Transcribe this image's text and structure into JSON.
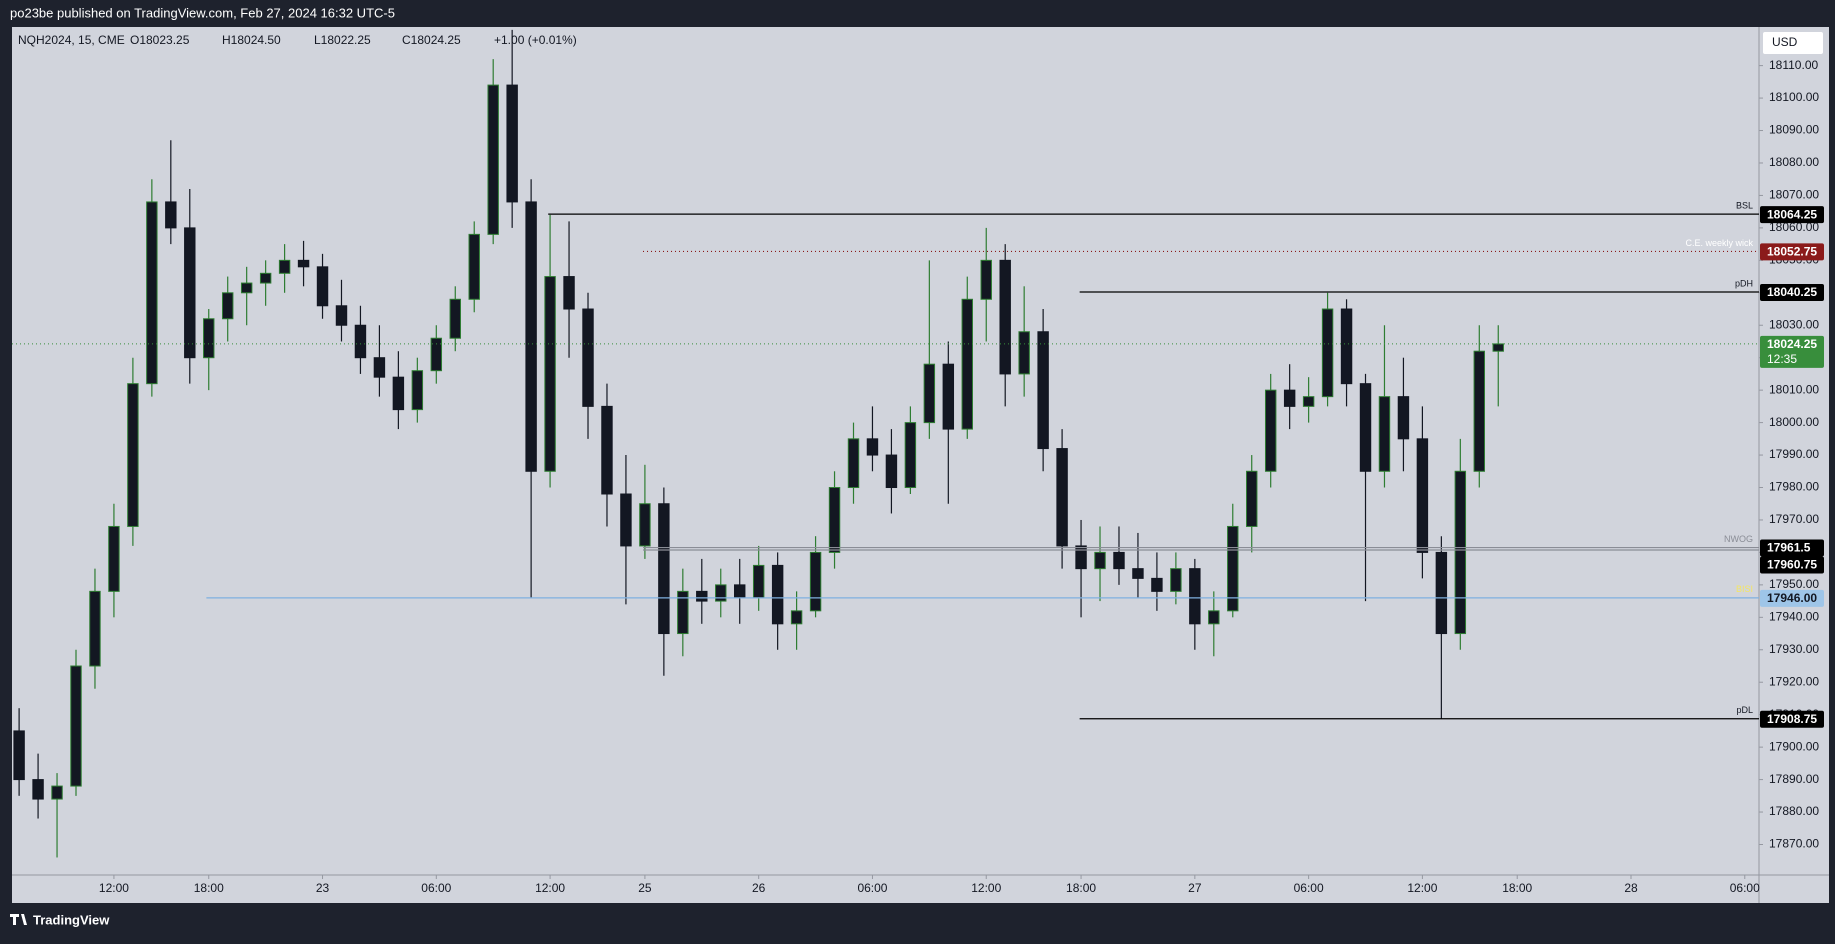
{
  "header": {
    "publisher": "po23be published on TradingView.com, Feb 27, 2024 16:32 UTC-5",
    "brand": "TradingView",
    "currency": "USD"
  },
  "chart_data": {
    "type": "candlestick",
    "legend": {
      "symbol": "NQH2024, 15, CME",
      "open": "O18023.25",
      "high": "H18024.50",
      "low": "L18022.25",
      "close": "C18024.25",
      "change": "+1.00 (+0.01%)"
    },
    "up_color": "#2e7d32",
    "down_color": "#131722",
    "x": [
      0,
      4,
      8,
      12,
      16,
      20,
      24,
      28,
      32,
      36,
      40,
      44,
      48,
      52,
      56,
      60,
      64,
      68,
      72,
      76,
      80,
      84,
      88,
      92,
      96,
      100,
      104,
      108,
      112,
      116,
      120,
      124,
      128,
      132,
      136,
      140,
      144,
      148,
      152,
      156,
      160,
      164,
      168,
      172,
      176,
      180,
      184,
      188,
      192,
      196,
      200,
      204,
      208,
      212,
      216,
      220,
      224,
      228,
      232,
      236,
      240,
      244,
      248,
      252,
      256,
      260,
      264,
      268,
      272,
      276,
      280,
      284,
      288,
      292,
      296,
      300,
      304,
      308,
      312
    ],
    "open": [
      17905,
      17890,
      17884,
      17888,
      17925,
      17948,
      17968,
      18012,
      18068,
      18060,
      18020,
      18032,
      18040,
      18043,
      18046,
      18050,
      18048,
      18036,
      18030,
      18020,
      18014,
      18004,
      18016,
      18026,
      18038,
      18058,
      18104,
      18068,
      17985,
      18045,
      18035,
      18005,
      17978,
      17962,
      17975,
      17935,
      17948,
      17945,
      17950,
      17946,
      17956,
      17938,
      17942,
      17960,
      17980,
      17995,
      17990,
      17980,
      18000,
      18018,
      17998,
      18038,
      18050,
      18015,
      18028,
      17992,
      17962,
      17955,
      17960,
      17955,
      17952,
      17948,
      17955,
      17938,
      17942,
      17968,
      17985,
      18010,
      18005,
      18008,
      18035,
      18012,
      17985,
      18008,
      17995,
      17960,
      17935,
      17985,
      18022
    ],
    "high": [
      17912,
      17898,
      17892,
      17930,
      17955,
      17975,
      18020,
      18075,
      18087,
      18072,
      18035,
      18045,
      18048,
      18050,
      18055,
      18056,
      18052,
      18044,
      18036,
      18030,
      18022,
      18020,
      18030,
      18042,
      18062,
      18112,
      18121,
      18075,
      18064,
      18062,
      18040,
      18012,
      17990,
      17987,
      17980,
      17955,
      17958,
      17955,
      17958,
      17962,
      17960,
      17948,
      17965,
      17985,
      18000,
      18005,
      17998,
      18005,
      18050,
      18025,
      18045,
      18060,
      18055,
      18042,
      18035,
      17998,
      17970,
      17968,
      17968,
      17966,
      17960,
      17960,
      17958,
      17948,
      17975,
      17990,
      18015,
      18018,
      18014,
      18040,
      18038,
      18015,
      18030,
      18020,
      18005,
      17965,
      17995,
      18030,
      18030
    ],
    "low": [
      17885,
      17878,
      17866,
      17885,
      17918,
      17940,
      17962,
      18008,
      18055,
      18012,
      18010,
      18025,
      18030,
      18036,
      18040,
      18042,
      18032,
      18025,
      18015,
      18008,
      17998,
      18000,
      18012,
      18022,
      18034,
      18055,
      18060,
      17946,
      17980,
      18020,
      17995,
      17968,
      17944,
      17958,
      17922,
      17928,
      17938,
      17940,
      17938,
      17942,
      17930,
      17930,
      17940,
      17955,
      17975,
      17985,
      17972,
      17978,
      17995,
      17975,
      17995,
      18025,
      18005,
      18008,
      17985,
      17955,
      17940,
      17945,
      17950,
      17946,
      17942,
      17944,
      17930,
      17928,
      17940,
      17960,
      17980,
      17998,
      18000,
      18005,
      18005,
      17945,
      17980,
      17985,
      17952,
      17908.75,
      17930,
      17980,
      18005
    ],
    "close": [
      17890,
      17884,
      17888,
      17925,
      17948,
      17968,
      18012,
      18068,
      18060,
      18020,
      18032,
      18040,
      18043,
      18046,
      18050,
      18048,
      18036,
      18030,
      18020,
      18014,
      18004,
      18016,
      18026,
      18038,
      18058,
      18104,
      18068,
      17985,
      18045,
      18035,
      18005,
      17978,
      17962,
      17975,
      17935,
      17948,
      17945,
      17950,
      17946,
      17956,
      17938,
      17942,
      17960,
      17980,
      17995,
      17990,
      17980,
      18000,
      18018,
      17998,
      18038,
      18050,
      18015,
      18028,
      17992,
      17962,
      17955,
      17960,
      17955,
      17952,
      17948,
      17955,
      17938,
      17942,
      17968,
      17985,
      18010,
      18005,
      18008,
      18035,
      18012,
      17985,
      18008,
      17995,
      17960,
      17935,
      17985,
      18022,
      18024.25
    ],
    "xlim": [
      -1.5,
      367
    ],
    "xticks": [
      {
        "value": 20,
        "label": "12:00"
      },
      {
        "value": 40,
        "label": "18:00"
      },
      {
        "value": 64,
        "label": "23"
      },
      {
        "value": 88,
        "label": "06:00"
      },
      {
        "value": 112,
        "label": "12:00"
      },
      {
        "value": 132,
        "label": "25"
      },
      {
        "value": 156,
        "label": "26"
      },
      {
        "value": 180,
        "label": "06:00"
      },
      {
        "value": 204,
        "label": "12:00"
      },
      {
        "value": 224,
        "label": "18:00"
      },
      {
        "value": 248,
        "label": "27"
      },
      {
        "value": 272,
        "label": "06:00"
      },
      {
        "value": 296,
        "label": "12:00"
      },
      {
        "value": 316,
        "label": "18:00"
      },
      {
        "value": 340,
        "label": "28"
      },
      {
        "value": 364,
        "label": "06:00"
      }
    ],
    "ylim": [
      17860.6,
      18121.9
    ],
    "yticks": [
      {
        "value": 17870,
        "label": "17870.00"
      },
      {
        "value": 17880,
        "label": "17880.00"
      },
      {
        "value": 17890,
        "label": "17890.00"
      },
      {
        "value": 17900,
        "label": "17900.00"
      },
      {
        "value": 17910,
        "label": "17910.00"
      },
      {
        "value": 17920,
        "label": "17920.00"
      },
      {
        "value": 17930,
        "label": "17930.00"
      },
      {
        "value": 17940,
        "label": "17940.00"
      },
      {
        "value": 17950,
        "label": "17950.00"
      },
      {
        "value": 17960,
        "label": "17960.00"
      },
      {
        "value": 17970,
        "label": "17970.00"
      },
      {
        "value": 17980,
        "label": "17980.00"
      },
      {
        "value": 17990,
        "label": "17990.00"
      },
      {
        "value": 18000,
        "label": "18000.00"
      },
      {
        "value": 18010,
        "label": "18010.00"
      },
      {
        "value": 18020,
        "label": "18020.00"
      },
      {
        "value": 18030,
        "label": "18030.00"
      },
      {
        "value": 18040,
        "label": "18040.00"
      },
      {
        "value": 18050,
        "label": "18050.00"
      },
      {
        "value": 18060,
        "label": "18060.00"
      },
      {
        "value": 18070,
        "label": "18070.00"
      },
      {
        "value": 18080,
        "label": "18080.00"
      },
      {
        "value": 18090,
        "label": "18090.00"
      },
      {
        "value": 18100,
        "label": "18100.00"
      },
      {
        "value": 18110,
        "label": "18110.00"
      }
    ],
    "levels": [
      {
        "name": "BSL",
        "value": 18064.25,
        "x_start": 111.6,
        "color": "#000000",
        "text_color": "#131722",
        "box_color": "#000000",
        "box_text": "#ffffff",
        "dash": "none"
      },
      {
        "name": "C.E. weekly wick",
        "value": 18052.75,
        "x_start": 131.6,
        "color": "#8b1a1a",
        "text_color": "#ffffff",
        "box_color": "#8b1a1a",
        "box_text": "#ffffff",
        "dash": "1 3"
      },
      {
        "name": "pDH",
        "value": 18040.25,
        "x_start": 223.7,
        "color": "#000000",
        "text_color": "#131722",
        "box_color": "#000000",
        "box_text": "#ffffff",
        "dash": "none"
      },
      {
        "name": "NWOG",
        "value": 17961.5,
        "x_start": 131.6,
        "color": "#8a8d96",
        "text_color": "#8a8d96",
        "box_color": "#000000",
        "box_text": "#ffffff",
        "dash": "none"
      },
      {
        "value": 17960.75,
        "x_start": 131.6,
        "color": "#8a8d96",
        "box_color": "#000000",
        "box_text": "#ffffff",
        "dash": "none"
      },
      {
        "name": "BISI",
        "value": 17946,
        "value_label": "17946.00",
        "x_start": 39.5,
        "color": "#7fb0e0",
        "text_color": "#f5e663",
        "box_color": "#9ec5e8",
        "box_text": "#131722",
        "dash": "none"
      },
      {
        "name": "pDL",
        "value": 17908.75,
        "x_start": 223.7,
        "color": "#000000",
        "text_color": "#131722",
        "box_color": "#000000",
        "box_text": "#ffffff",
        "dash": "none"
      }
    ],
    "last_price": {
      "value": 18024.25,
      "countdown": "12:35",
      "color": "#388e3c"
    }
  }
}
